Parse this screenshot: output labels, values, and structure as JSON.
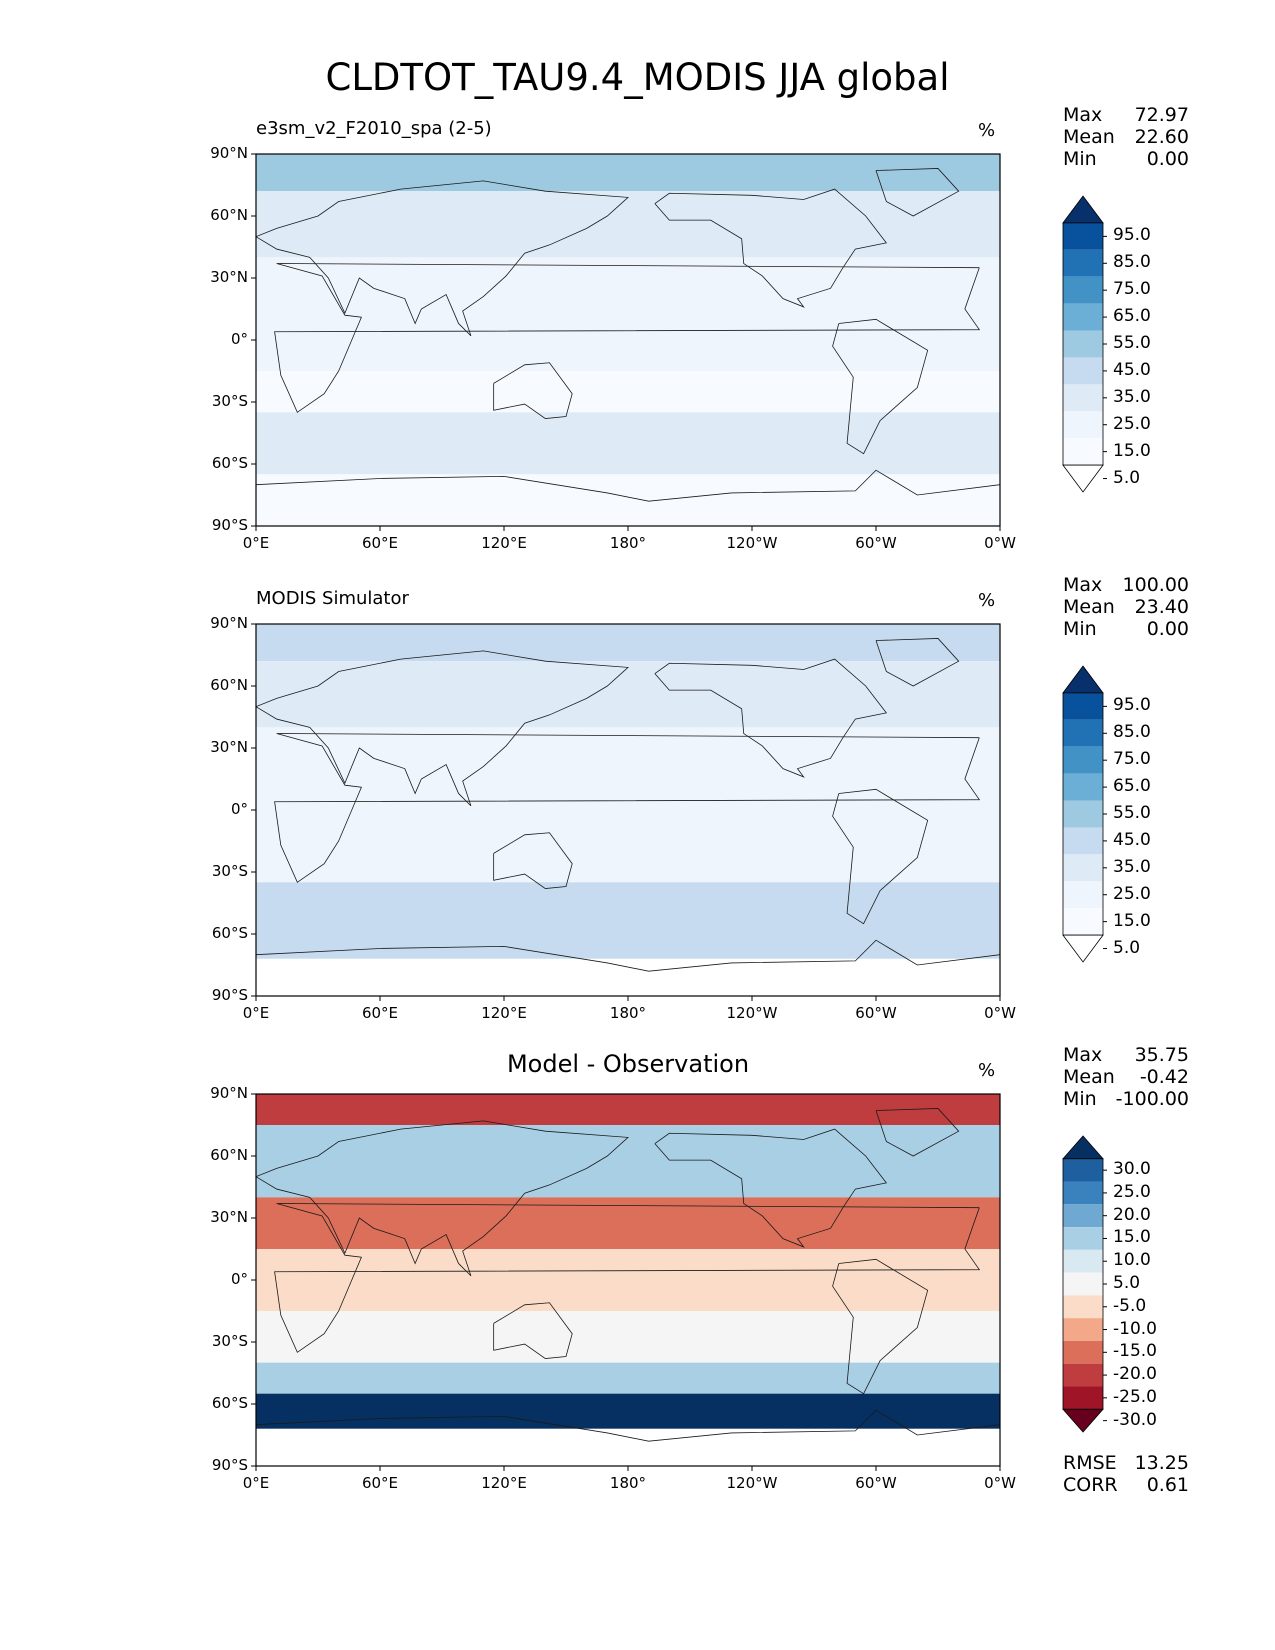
{
  "title": "CLDTOT_TAU9.4_MODIS JJA global",
  "chart_data": [
    {
      "type": "heatmap",
      "panel": "test",
      "title": "e3sm_v2_F2010_spa (2-5)",
      "units": "%",
      "stats": {
        "max_label": "Max",
        "max": "72.97",
        "mean_label": "Mean",
        "mean": "22.60",
        "min_label": "Min",
        "min": "0.00"
      },
      "lat_ticks": [
        "90°N",
        "60°N",
        "30°N",
        "0°",
        "30°S",
        "60°S",
        "90°S"
      ],
      "lon_ticks": [
        "0°E",
        "60°E",
        "120°E",
        "180°",
        "120°W",
        "60°W",
        "0°W"
      ],
      "colorbar_levels": [
        "95.0",
        "85.0",
        "75.0",
        "65.0",
        "55.0",
        "45.0",
        "35.0",
        "25.0",
        "15.0",
        "5.0"
      ],
      "colormap": [
        "#08306b",
        "#08519c",
        "#2171b5",
        "#4292c6",
        "#6baed6",
        "#9ecae1",
        "#c6dbef",
        "#deebf7",
        "#eef5fc",
        "#f7fbff",
        "#ffffff"
      ],
      "field": {
        "description_lat_bands": [
          {
            "lat_from": 90,
            "lat_to": 72,
            "level": 5
          },
          {
            "lat_from": 72,
            "lat_to": 40,
            "level": 3
          },
          {
            "lat_from": 40,
            "lat_to": 15,
            "level": 2
          },
          {
            "lat_from": 15,
            "lat_to": -15,
            "level": 2
          },
          {
            "lat_from": -15,
            "lat_to": -35,
            "level": 1
          },
          {
            "lat_from": -35,
            "lat_to": -65,
            "level": 3
          },
          {
            "lat_from": -65,
            "lat_to": -90,
            "level": 1
          }
        ]
      }
    },
    {
      "type": "heatmap",
      "panel": "reference",
      "title": "MODIS Simulator",
      "units": "%",
      "stats": {
        "max_label": "Max",
        "max": "100.00",
        "mean_label": "Mean",
        "mean": "23.40",
        "min_label": "Min",
        "min": "0.00"
      },
      "lat_ticks": [
        "90°N",
        "60°N",
        "30°N",
        "0°",
        "30°S",
        "60°S",
        "90°S"
      ],
      "lon_ticks": [
        "0°E",
        "60°E",
        "120°E",
        "180°",
        "120°W",
        "60°W",
        "0°W"
      ],
      "colorbar_levels": [
        "95.0",
        "85.0",
        "75.0",
        "65.0",
        "55.0",
        "45.0",
        "35.0",
        "25.0",
        "15.0",
        "5.0"
      ],
      "colormap": [
        "#08306b",
        "#08519c",
        "#2171b5",
        "#4292c6",
        "#6baed6",
        "#9ecae1",
        "#c6dbef",
        "#deebf7",
        "#eef5fc",
        "#f7fbff",
        "#ffffff"
      ],
      "field": {
        "description_lat_bands": [
          {
            "lat_from": 90,
            "lat_to": 72,
            "level": 4
          },
          {
            "lat_from": 72,
            "lat_to": 40,
            "level": 3
          },
          {
            "lat_from": 40,
            "lat_to": 15,
            "level": 2
          },
          {
            "lat_from": 15,
            "lat_to": -15,
            "level": 2
          },
          {
            "lat_from": -15,
            "lat_to": -35,
            "level": 2
          },
          {
            "lat_from": -35,
            "lat_to": -72,
            "level": 4
          },
          {
            "lat_from": -72,
            "lat_to": -90,
            "level": 0
          }
        ]
      }
    },
    {
      "type": "heatmap",
      "panel": "difference",
      "title": "Model - Observation",
      "units": "%",
      "stats": {
        "max_label": "Max",
        "max": "35.75",
        "mean_label": "Mean",
        "mean": "-0.42",
        "min_label": "Min",
        "min": "-100.00"
      },
      "lat_ticks": [
        "90°N",
        "60°N",
        "30°N",
        "0°",
        "30°S",
        "60°S",
        "90°S"
      ],
      "lon_ticks": [
        "0°E",
        "60°E",
        "120°E",
        "180°",
        "120°W",
        "60°W",
        "0°W"
      ],
      "colorbar_levels": [
        "30.0",
        "25.0",
        "20.0",
        "15.0",
        "10.0",
        "5.0",
        "-5.0",
        "-10.0",
        "-15.0",
        "-20.0",
        "-25.0",
        "-30.0"
      ],
      "colormap": [
        "#053061",
        "#1e5fa0",
        "#3a82bd",
        "#6fa9d2",
        "#a9cfe5",
        "#d9e9f2",
        "#f5f5f5",
        "#fbdcc8",
        "#f2a889",
        "#dc6f5a",
        "#bf3d3f",
        "#a01428",
        "#67001f"
      ],
      "metrics": {
        "rmse_label": "RMSE",
        "rmse": "13.25",
        "corr_label": "CORR",
        "corr": "0.61"
      },
      "field": {
        "description_lat_bands": [
          {
            "lat_from": 90,
            "lat_to": 75,
            "level": 2
          },
          {
            "lat_from": 75,
            "lat_to": 40,
            "level": 8
          },
          {
            "lat_from": 40,
            "lat_to": 15,
            "level": 3
          },
          {
            "lat_from": 15,
            "lat_to": -15,
            "level": 5
          },
          {
            "lat_from": -15,
            "lat_to": -40,
            "level": 6
          },
          {
            "lat_from": -40,
            "lat_to": -55,
            "level": 8
          },
          {
            "lat_from": -55,
            "lat_to": -72,
            "level": 12
          },
          {
            "lat_from": -72,
            "lat_to": -90,
            "level": -1
          }
        ]
      }
    }
  ]
}
